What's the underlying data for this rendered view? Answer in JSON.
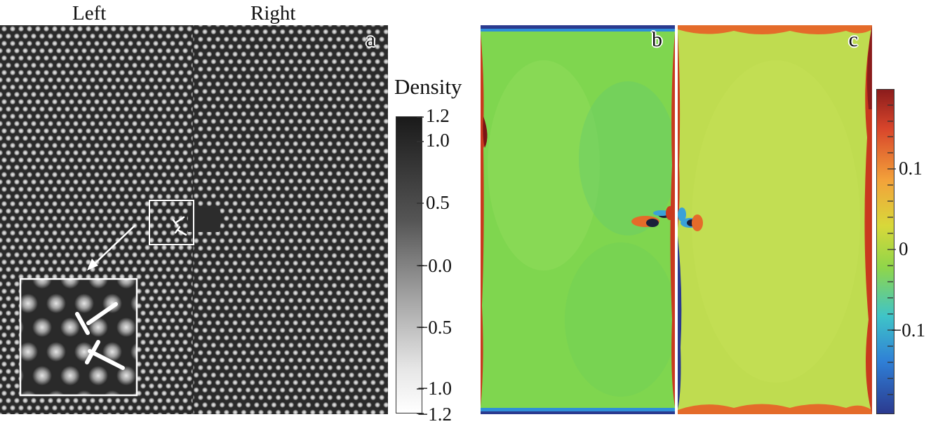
{
  "figure": {
    "header_left": "Left",
    "header_right": "Right",
    "panels": [
      {
        "label": "a"
      },
      {
        "label": "b"
      },
      {
        "label": "c"
      }
    ],
    "density_colorbar": {
      "title": "Density",
      "min": -1.2,
      "max": 1.2,
      "tick_labels": [
        "1.2",
        "1.0",
        "0.5",
        "−0.0",
        "−0.5",
        "−1.0",
        "−1.2"
      ],
      "colors": {
        "high": "#1a1a1a",
        "low": "#ffffff"
      }
    },
    "strain_colorbar": {
      "tick_labels": [
        "0.1",
        "0",
        "−0.1"
      ],
      "colors": [
        "#2b3a8f",
        "#2f7fd6",
        "#3fc4c8",
        "#8fd64a",
        "#d8d83a",
        "#f3a23a",
        "#d8452b",
        "#8b1c1c"
      ]
    }
  }
}
